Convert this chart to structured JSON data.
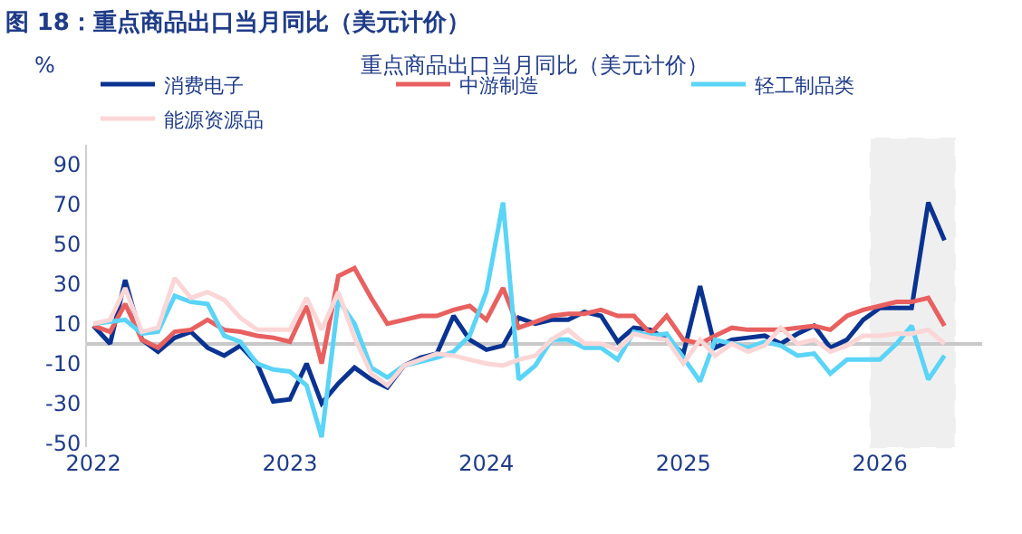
{
  "chart_data": {
    "type": "line",
    "title": "图 18：重点商品出口当月同比（美元计价）",
    "subtitle": "重点商品出口当月同比（美元计价）",
    "ylabel": "%",
    "x": [
      "2022-01",
      "2022-02",
      "2022-03",
      "2022-04",
      "2022-05",
      "2022-06",
      "2022-07",
      "2022-08",
      "2022-09",
      "2022-10",
      "2022-11",
      "2022-12",
      "2023-01",
      "2023-02",
      "2023-03",
      "2023-04",
      "2023-05",
      "2023-06",
      "2023-07",
      "2023-08",
      "2023-09",
      "2023-10",
      "2023-11",
      "2023-12",
      "2024-01",
      "2024-02",
      "2024-03",
      "2024-04",
      "2024-05",
      "2024-06",
      "2024-07",
      "2024-08",
      "2024-09",
      "2024-10",
      "2024-11",
      "2024-12",
      "2025-01",
      "2025-02",
      "2025-03",
      "2025-04",
      "2025-05",
      "2025-06",
      "2025-07",
      "2025-08",
      "2025-09",
      "2025-10",
      "2025-11",
      "2025-12",
      "2026-01",
      "2026-02",
      "2026-03",
      "2026-04",
      "2026-05"
    ],
    "series": [
      {
        "name": "消费电子",
        "color": "#0a3391",
        "values": [
          9,
          0,
          32,
          2,
          -4,
          3,
          6,
          -2,
          -6,
          -1,
          -10,
          -29,
          -28,
          -10,
          -30,
          -20,
          -12,
          -18,
          -22,
          -11,
          -7,
          -5,
          14,
          2,
          -3,
          -1,
          13,
          10,
          12,
          12,
          16,
          14,
          1,
          8,
          7,
          2,
          -5,
          29,
          -2,
          2,
          3,
          4,
          0,
          5,
          9,
          -2,
          2,
          12,
          18,
          18,
          18,
          71,
          52
        ]
      },
      {
        "name": "中游制造",
        "color": "#e8605f",
        "values": [
          9,
          6,
          20,
          2,
          -2,
          6,
          7,
          12,
          7,
          6,
          4,
          3,
          1,
          19,
          -10,
          34,
          38,
          23,
          10,
          12,
          14,
          14,
          17,
          19,
          12,
          28,
          8,
          11,
          14,
          15,
          15,
          17,
          14,
          14,
          5,
          14,
          2,
          0,
          4,
          8,
          7,
          7,
          7,
          8,
          9,
          7,
          14,
          17,
          19,
          21,
          21,
          23,
          9
        ]
      },
      {
        "name": "轻工制品类",
        "color": "#5ad4f7",
        "values": [
          10,
          11,
          12,
          5,
          6,
          24,
          21,
          20,
          4,
          1,
          -10,
          -13,
          -14,
          -21,
          -47,
          22,
          10,
          -12,
          -17,
          -11,
          -9,
          -7,
          -4,
          4,
          26,
          71,
          -18,
          -11,
          2,
          2,
          -2,
          -2,
          -8,
          6,
          4,
          5,
          -7,
          -19,
          2,
          0,
          -2,
          1,
          -1,
          -6,
          -5,
          -15,
          -8,
          -8,
          -8,
          0,
          9,
          -18,
          -6
        ]
      },
      {
        "name": "能源资源品",
        "color": "#fbd6d6",
        "values": [
          10,
          12,
          28,
          6,
          8,
          33,
          23,
          26,
          22,
          13,
          7,
          7,
          7,
          23,
          7,
          26,
          3,
          -15,
          -21,
          -11,
          -8,
          -5,
          -6,
          -8,
          -10,
          -11,
          -8,
          -6,
          2,
          7,
          0,
          0,
          -3,
          5,
          3,
          2,
          -10,
          2,
          -6,
          0,
          -4,
          -1,
          8,
          0,
          2,
          -4,
          -1,
          4,
          4,
          5,
          5,
          7,
          0
        ]
      }
    ],
    "xlim": [
      "2021-12-20",
      "2026-07-10"
    ],
    "xticks": [
      "2022",
      "2023",
      "2024",
      "2025",
      "2026"
    ],
    "ylim": [
      -52,
      100
    ],
    "yticks": [
      -50,
      -30,
      -10,
      10,
      30,
      50,
      70,
      90
    ],
    "bands": [
      {
        "axis": "x",
        "from": "2025-12-15",
        "to": "2026-05-20",
        "color": "#7f7f7f"
      }
    ],
    "legend": "top",
    "marker": "none",
    "line_style": "solid"
  }
}
